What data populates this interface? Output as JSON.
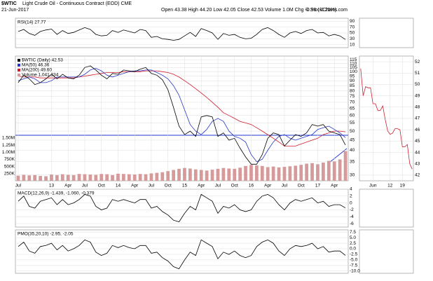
{
  "header": {
    "symbol": "$WTIC",
    "name": "Light Crude Oil - Continuous Contract (EOD) CME",
    "date": "21-Jun-2017",
    "quote": "Open 43.38  High 44.20  Low 42.05  Close 42.53  Volume 1.0M  Chg -0.98 (-2.25%)",
    "credit": "© StockCharts.com"
  },
  "chart_data": [
    {
      "type": "line",
      "title": "RSI(14) 27.77",
      "ylim": [
        0,
        100
      ],
      "yticks": [
        90,
        70,
        50,
        30,
        10
      ],
      "grid": true,
      "color": "#000000",
      "values": [
        55,
        62,
        48,
        42,
        55,
        60,
        63,
        45,
        58,
        48,
        52,
        60,
        68,
        62,
        45,
        40,
        42,
        58,
        52,
        60,
        55,
        50,
        62,
        58,
        35,
        38,
        30,
        28,
        25,
        28,
        40,
        52,
        38,
        65,
        58,
        50,
        28,
        48,
        42,
        45,
        35,
        30,
        32,
        45,
        62,
        68,
        58,
        45,
        35,
        50,
        55,
        48,
        58,
        62,
        50,
        52,
        40,
        45,
        40,
        27.77
      ]
    },
    {
      "type": "line",
      "log_scale": true,
      "ylim": [
        28,
        120
      ],
      "yticks": [
        115,
        110,
        105,
        100,
        95,
        90,
        85,
        80,
        75,
        70,
        65,
        60,
        55,
        50,
        45,
        40,
        35,
        30
      ],
      "grid": true,
      "categories": [
        "Jul",
        null,
        null,
        null,
        null,
        null,
        "13",
        null,
        null,
        "Apr",
        null,
        null,
        "Jul",
        null,
        null,
        "Oct",
        null,
        null,
        "14",
        null,
        null,
        "Apr",
        null,
        null,
        "Jul",
        null,
        null,
        "Oct",
        null,
        null,
        "15",
        null,
        null,
        "Apr",
        null,
        null,
        "Jul",
        null,
        null,
        "Oct",
        null,
        null,
        "16",
        null,
        null,
        "Apr",
        null,
        null,
        "Jul",
        null,
        null,
        "Oct",
        null,
        null,
        "17",
        null,
        null,
        "Apr",
        null,
        null
      ],
      "y2lim": [
        0,
        1750000
      ],
      "y2ticks": [
        {
          "value": 1500000,
          "label": "1.50M"
        },
        {
          "value": 1250000,
          "label": "1.25M"
        },
        {
          "value": 1000000,
          "label": "1.00M"
        },
        {
          "value": 750000,
          "label": "750K"
        },
        {
          "value": 500000,
          "label": "500K"
        },
        {
          "value": 250000,
          "label": "250K"
        }
      ],
      "series": [
        {
          "name": "Volume 1,041,334",
          "color": "#d79a9a",
          "axis": "y2",
          "values": [
            180000,
            210000,
            190000,
            200000,
            170000,
            160000,
            220000,
            200000,
            230000,
            210000,
            200000,
            240000,
            230000,
            220000,
            210000,
            240000,
            230000,
            200000,
            250000,
            240000,
            230000,
            220000,
            240000,
            230000,
            260000,
            280000,
            300000,
            340000,
            380000,
            420000,
            450000,
            430000,
            400000,
            380000,
            360000,
            390000,
            420000,
            450000,
            430000,
            420000,
            460000,
            520000,
            560000,
            540000,
            520000,
            480000,
            500000,
            470000,
            490000,
            510000,
            530000,
            560000,
            600000,
            620000,
            580000,
            640000,
            700000,
            680000,
            750000,
            1041334
          ]
        },
        {
          "name": "MA(200) 49.60",
          "color": "#d01c2a",
          "values": [
            95,
            94,
            94,
            94,
            93,
            93,
            93,
            93,
            93,
            93,
            93,
            94,
            95,
            96,
            97,
            98,
            99,
            99,
            99,
            100,
            100,
            100,
            100,
            101,
            101,
            101,
            100,
            99,
            97,
            94,
            90,
            86,
            82,
            78,
            74,
            70,
            66,
            62,
            60,
            58,
            56,
            55,
            54,
            52,
            50,
            48,
            46,
            44,
            42,
            42,
            42,
            43,
            44,
            45,
            46,
            48,
            49,
            50,
            50,
            49.6
          ]
        },
        {
          "name": "MA(50) 46.36",
          "color": "#2336c8",
          "values": [
            90,
            92,
            94,
            92,
            88,
            88,
            90,
            94,
            94,
            94,
            94,
            94,
            97,
            102,
            104,
            101,
            96,
            94,
            96,
            98,
            100,
            101,
            101,
            102,
            102,
            99,
            96,
            92,
            85,
            76,
            64,
            54,
            50,
            48,
            51,
            56,
            58,
            56,
            50,
            47,
            46,
            44,
            38,
            35,
            36,
            40,
            44,
            47,
            48,
            46,
            45,
            46,
            47,
            48,
            51,
            52,
            53,
            51,
            49,
            46.36
          ]
        },
        {
          "name": "$WTIC (Daily) 42.53",
          "color": "#000000",
          "values": [
            88,
            96,
            92,
            86,
            88,
            92,
            97,
            92,
            97,
            93,
            92,
            96,
            105,
            107,
            102,
            96,
            92,
            98,
            97,
            102,
            101,
            100,
            103,
            105,
            98,
            96,
            91,
            81,
            66,
            53,
            48,
            50,
            47,
            59,
            60,
            59,
            47,
            49,
            45,
            46,
            41,
            37,
            34,
            34,
            38,
            46,
            49,
            48,
            42,
            45,
            48,
            47,
            49,
            54,
            53,
            54,
            50,
            49,
            48,
            42.53
          ]
        }
      ]
    },
    {
      "type": "line",
      "title": "MACD(12,26,9) -1.439, -1.060, -0.379",
      "ylim": [
        -7,
        4
      ],
      "yticks": [
        4,
        2,
        0,
        -2,
        -4,
        -6
      ],
      "grid": true,
      "color": "#000000",
      "values": [
        0.5,
        2,
        -1,
        -1.5,
        0.5,
        1,
        1.5,
        -0.5,
        1,
        -0.5,
        0,
        1,
        2.5,
        2,
        -1,
        -2,
        -1.5,
        1,
        0.5,
        1,
        0.5,
        0,
        1,
        1,
        -1.5,
        -1,
        -2.5,
        -3.5,
        -5,
        -5.5,
        -3,
        -1,
        -2,
        2.5,
        1.5,
        0.5,
        -3,
        -1,
        -1.5,
        -0.5,
        -2,
        -2.5,
        -2,
        0.5,
        2,
        2.5,
        1.5,
        -0.5,
        -2,
        0,
        1,
        0.5,
        1,
        1.5,
        0,
        0.5,
        -1,
        -0.5,
        -0.5,
        -1.439
      ]
    },
    {
      "type": "line",
      "title": "PMO(35,20,10) -2.95, -2.05",
      "ylim": [
        -11,
        8.5
      ],
      "yticks": [
        7.5,
        {
          "value": 5,
          "label": "5.0"
        },
        2.5,
        {
          "value": 0,
          "label": "0.0"
        },
        -2.5,
        {
          "value": -5,
          "label": "-5.0"
        },
        -7.5,
        {
          "value": -10,
          "label": "-10.0"
        }
      ],
      "grid": true,
      "color": "#000000",
      "values": [
        1,
        3,
        -1,
        -2,
        1,
        1.5,
        2.5,
        -0.5,
        1.5,
        -1,
        0,
        1.5,
        4,
        3,
        -1.5,
        -3,
        -2,
        1.5,
        0.5,
        1.5,
        0.5,
        0,
        1.5,
        1.5,
        -2,
        -1.5,
        -4,
        -5.5,
        -8,
        -9,
        -5,
        -1.5,
        -3,
        4,
        2.5,
        1,
        -4.5,
        -1.5,
        -2.5,
        -1,
        -3,
        -4,
        -3,
        1,
        3,
        4,
        2.5,
        -1,
        -3,
        0,
        1.5,
        1,
        1.5,
        2.5,
        0,
        1,
        -1.5,
        -1,
        -1,
        -2.95
      ]
    },
    {
      "type": "line",
      "ylim": [
        41.5,
        52.5
      ],
      "yticks": [
        52,
        51,
        50,
        49,
        48,
        47,
        46,
        45,
        44,
        43,
        42
      ],
      "grid": true,
      "color": "#cc2233",
      "categories": [
        null,
        null,
        null,
        null,
        null,
        "Jun",
        null,
        null,
        null,
        null,
        null,
        null,
        "12",
        null,
        null,
        null,
        null,
        "19",
        null,
        null,
        null,
        null
      ],
      "values": [
        51.4,
        49.0,
        49.8,
        49.7,
        49.7,
        48.3,
        48.3,
        47.7,
        47.7,
        48.1,
        46.9,
        45.9,
        45.6,
        45.7,
        46.1,
        46.1,
        46.0,
        44.5,
        44.5,
        44.7,
        43.0,
        42.53
      ]
    }
  ]
}
